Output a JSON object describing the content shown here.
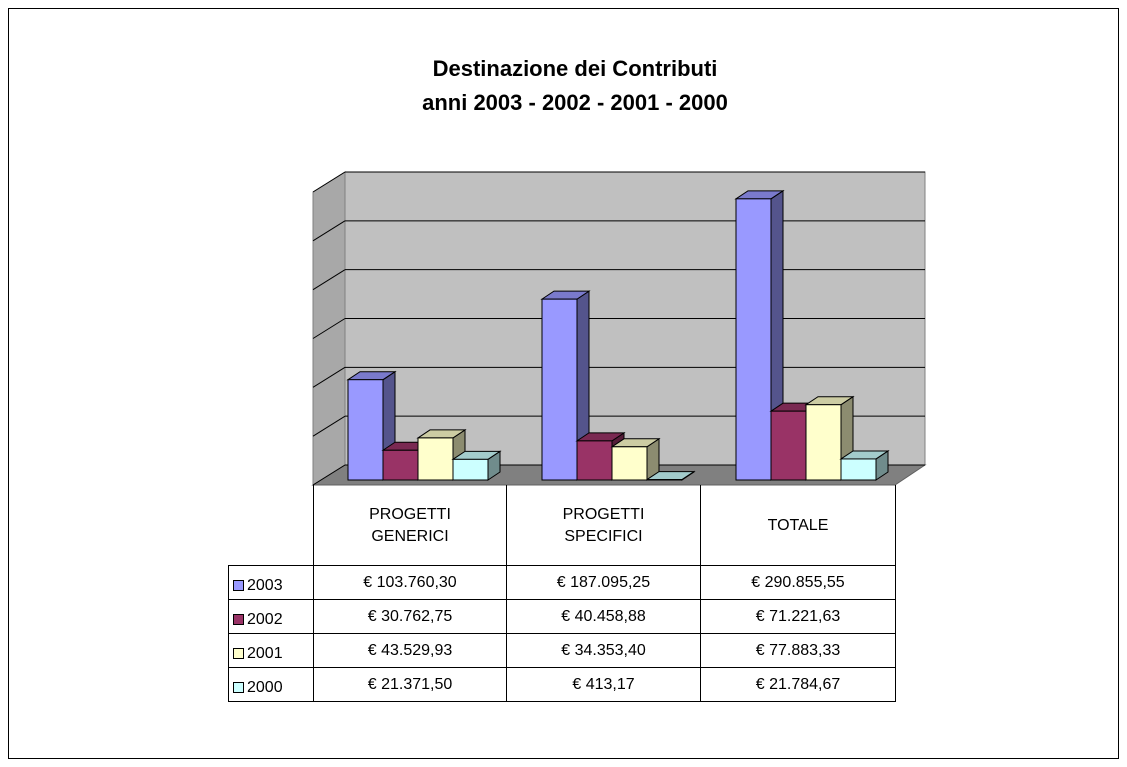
{
  "chart_data": {
    "type": "bar3d",
    "title": "Destinazione dei Contributi",
    "subtitle": "anni 2003 - 2002 - 2001 - 2000",
    "categories": [
      "PROGETTI GENERICI",
      "PROGETTI SPECIFICI",
      "TOTALE"
    ],
    "series": [
      {
        "name": "2003",
        "color": "#9999ff",
        "values": [
          103760.3,
          187095.25,
          290855.55
        ],
        "value_labels": [
          "€ 103.760,30",
          "€ 187.095,25",
          "€ 290.855,55"
        ]
      },
      {
        "name": "2002",
        "color": "#993366",
        "values": [
          30762.75,
          40458.88,
          71221.63
        ],
        "value_labels": [
          "€ 30.762,75",
          "€ 40.458,88",
          "€ 71.221,63"
        ]
      },
      {
        "name": "2001",
        "color": "#ffffcc",
        "values": [
          43529.93,
          34353.4,
          77883.33
        ],
        "value_labels": [
          "€ 43.529,93",
          "€ 34.353,40",
          "€ 77.883,33"
        ]
      },
      {
        "name": "2000",
        "color": "#ccffff",
        "values": [
          21371.5,
          413.17,
          21784.67
        ],
        "value_labels": [
          "€ 21.371,50",
          "€ 413,17",
          "€ 21.784,67"
        ]
      }
    ],
    "ylim": [
      0,
      300000
    ],
    "yticks": [
      0,
      50000,
      100000,
      150000,
      200000,
      250000,
      300000
    ],
    "grid": true,
    "legend": "table"
  }
}
